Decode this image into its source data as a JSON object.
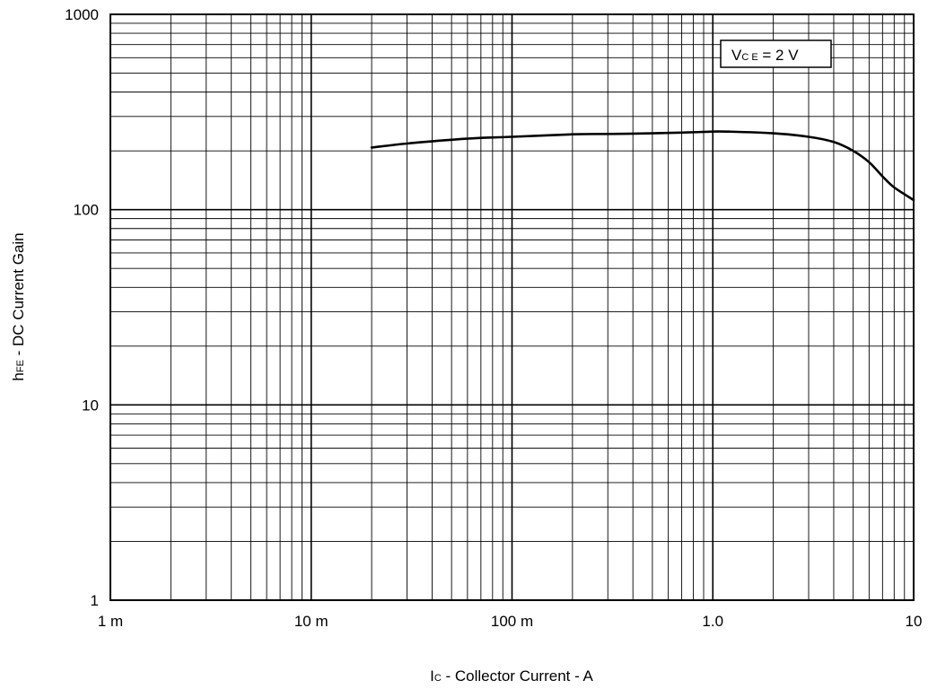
{
  "chart_data": {
    "type": "line",
    "xscale": "log",
    "yscale": "log",
    "xlim": [
      0.001,
      10
    ],
    "ylim": [
      1,
      1000
    ],
    "grid": true,
    "xticks": [
      0.001,
      0.01,
      0.1,
      1,
      10
    ],
    "xtick_labels": [
      "1 m",
      "10 m",
      "100 m",
      "1.0",
      "10"
    ],
    "yticks": [
      1,
      10,
      100,
      1000
    ],
    "ytick_labels": [
      "1",
      "10",
      "100",
      "1000"
    ],
    "xlabel": {
      "main": "I",
      "sub": "C",
      "rest": " - Collector Current - A"
    },
    "ylabel": {
      "main": "h",
      "sub": "FE",
      "rest": " - DC Current Gain"
    },
    "annotation": {
      "main": "V",
      "sub": "C E",
      "rest": " = 2 V",
      "placement": "top-right"
    },
    "series": [
      {
        "x": [
          0.02,
          0.03,
          0.05,
          0.07,
          0.1,
          0.2,
          0.3,
          0.5,
          0.7,
          1.0,
          1.2,
          2.0,
          3.0,
          4.0,
          5.0,
          6.0,
          7.0,
          8.0,
          10.0
        ],
        "y": [
          208,
          218,
          228,
          233,
          236,
          243,
          244,
          246,
          248,
          251,
          251,
          246,
          236,
          222,
          200,
          175,
          148,
          130,
          112
        ],
        "color": "#000000"
      }
    ]
  }
}
